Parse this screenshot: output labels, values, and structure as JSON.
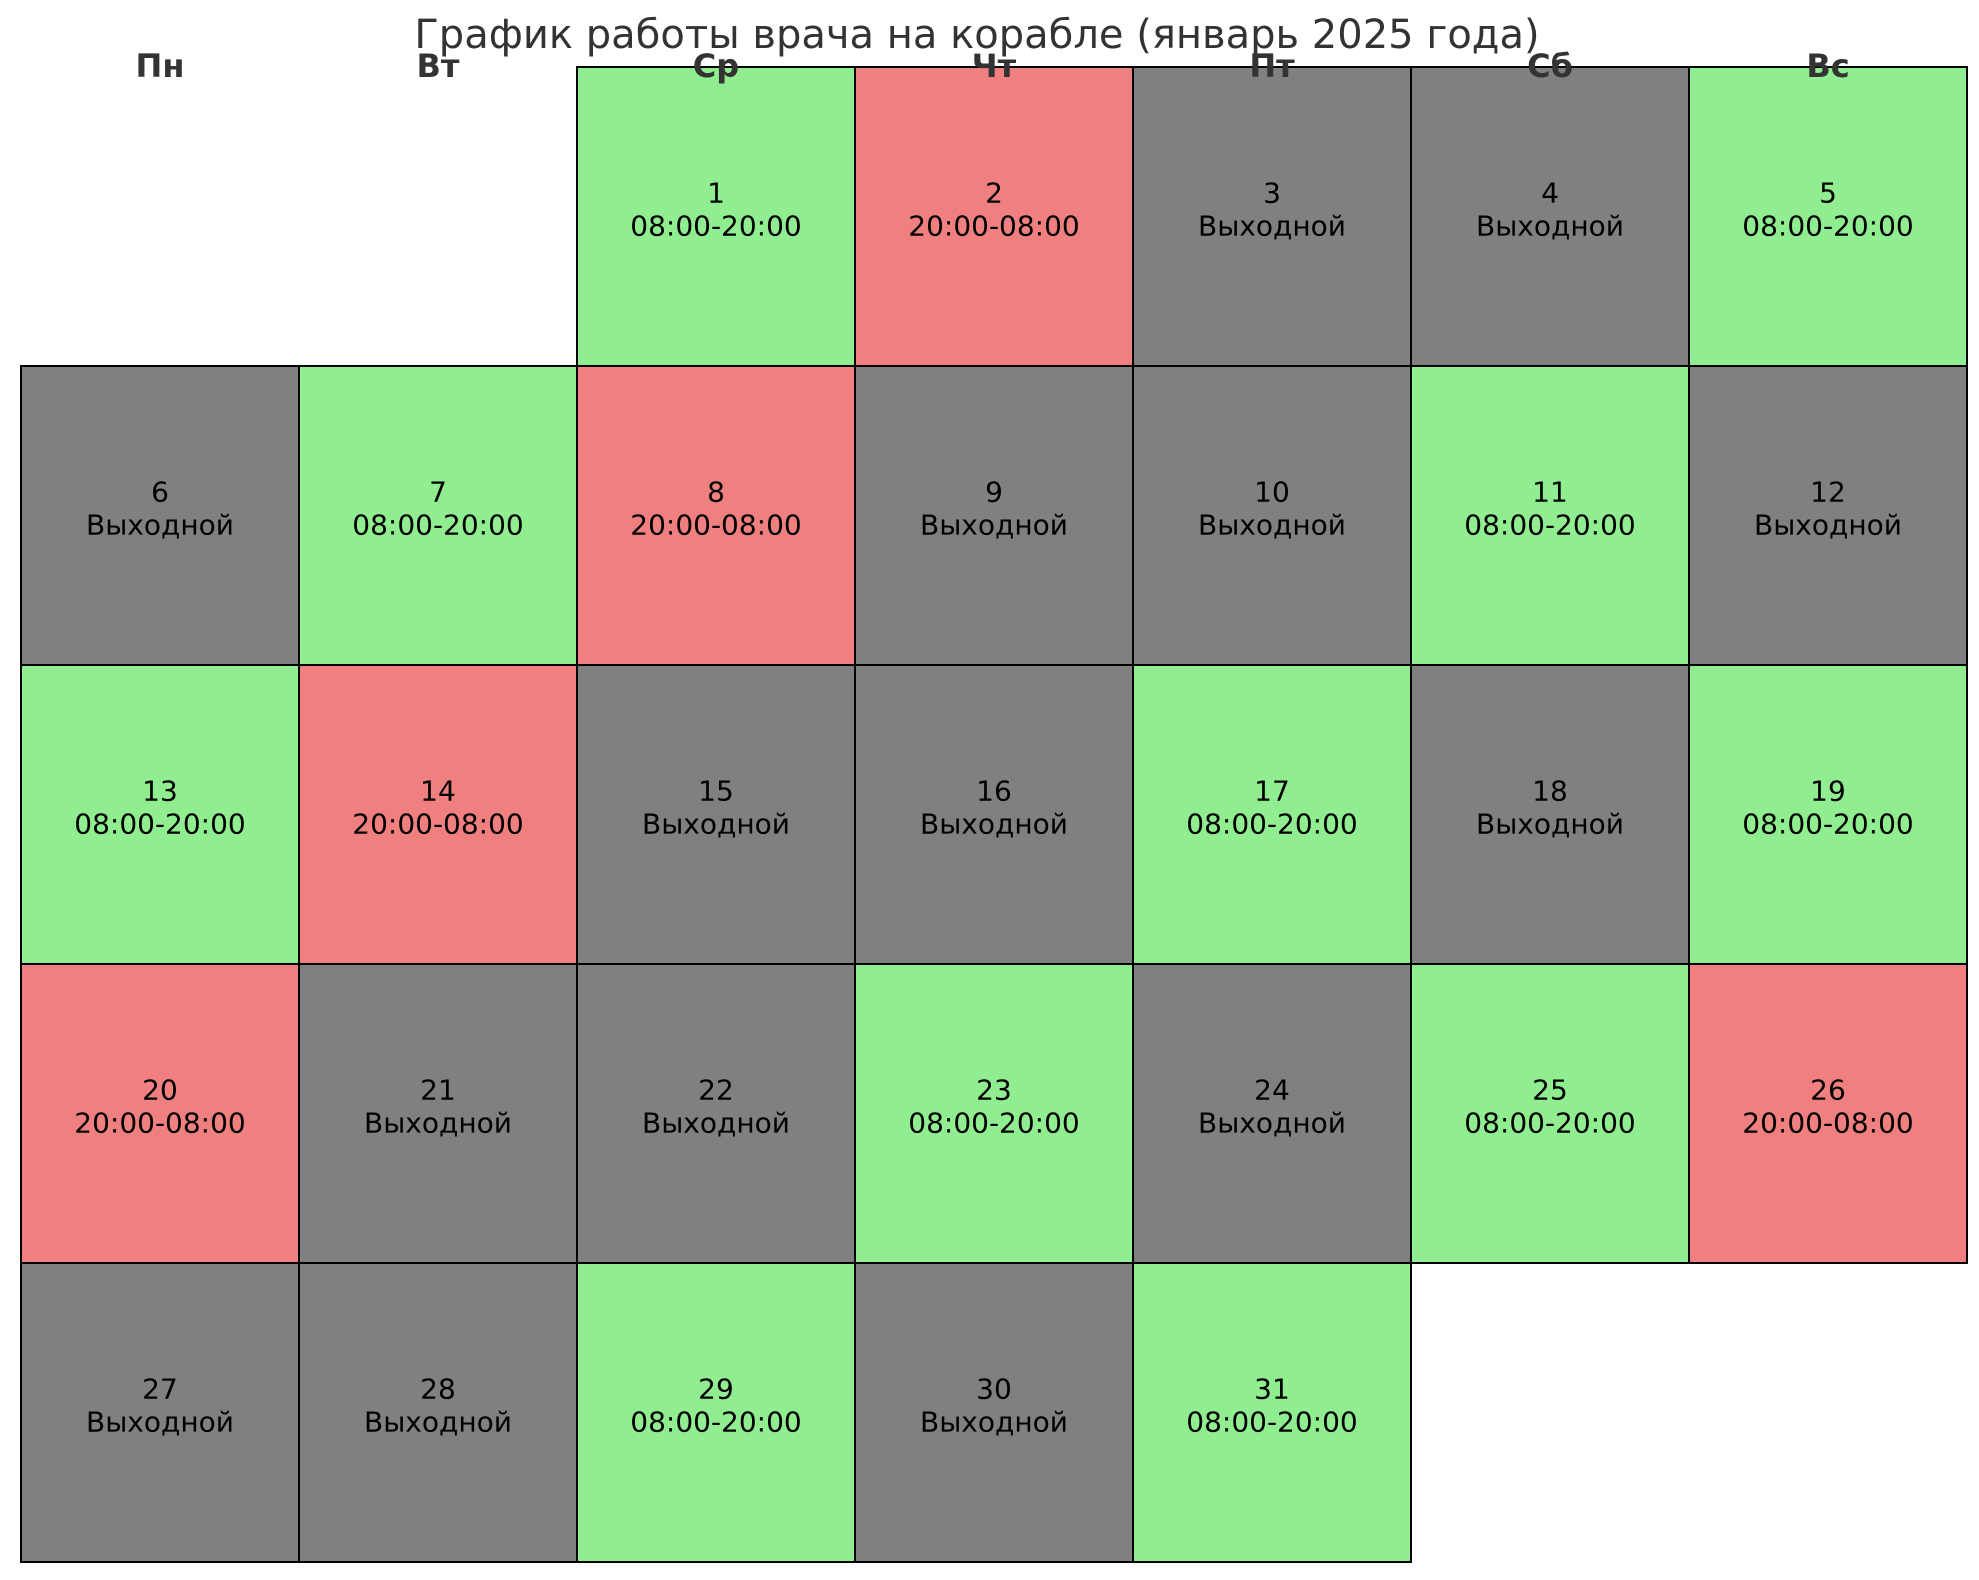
{
  "chart_data": {
    "type": "heatmap",
    "title": "График работы врача на корабле (январь 2025 года)",
    "weekdays": [
      "Пн",
      "Вт",
      "Ср",
      "Чт",
      "Пт",
      "Сб",
      "Вс"
    ],
    "first_weekday_index": 2,
    "shift_colors": {
      "08:00-20:00": "#90ee90",
      "20:00-08:00": "#f08080",
      "Выходной": "#808080"
    },
    "days": [
      {
        "day": 1,
        "shift": "08:00-20:00"
      },
      {
        "day": 2,
        "shift": "20:00-08:00"
      },
      {
        "day": 3,
        "shift": "Выходной"
      },
      {
        "day": 4,
        "shift": "Выходной"
      },
      {
        "day": 5,
        "shift": "08:00-20:00"
      },
      {
        "day": 6,
        "shift": "Выходной"
      },
      {
        "day": 7,
        "shift": "08:00-20:00"
      },
      {
        "day": 8,
        "shift": "20:00-08:00"
      },
      {
        "day": 9,
        "shift": "Выходной"
      },
      {
        "day": 10,
        "shift": "Выходной"
      },
      {
        "day": 11,
        "shift": "08:00-20:00"
      },
      {
        "day": 12,
        "shift": "Выходной"
      },
      {
        "day": 13,
        "shift": "08:00-20:00"
      },
      {
        "day": 14,
        "shift": "20:00-08:00"
      },
      {
        "day": 15,
        "shift": "Выходной"
      },
      {
        "day": 16,
        "shift": "Выходной"
      },
      {
        "day": 17,
        "shift": "08:00-20:00"
      },
      {
        "day": 18,
        "shift": "Выходной"
      },
      {
        "day": 19,
        "shift": "08:00-20:00"
      },
      {
        "day": 20,
        "shift": "20:00-08:00"
      },
      {
        "day": 21,
        "shift": "Выходной"
      },
      {
        "day": 22,
        "shift": "Выходной"
      },
      {
        "day": 23,
        "shift": "08:00-20:00"
      },
      {
        "day": 24,
        "shift": "Выходной"
      },
      {
        "day": 25,
        "shift": "08:00-20:00"
      },
      {
        "day": 26,
        "shift": "20:00-08:00"
      },
      {
        "day": 27,
        "shift": "Выходной"
      },
      {
        "day": 28,
        "shift": "Выходной"
      },
      {
        "day": 29,
        "shift": "08:00-20:00"
      },
      {
        "day": 30,
        "shift": "Выходной"
      },
      {
        "day": 31,
        "shift": "08:00-20:00"
      }
    ]
  }
}
